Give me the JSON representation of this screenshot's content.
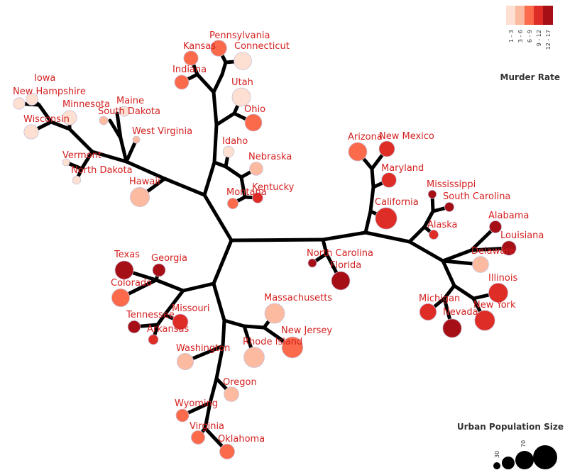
{
  "states": [
    {
      "name": "Iowa",
      "rate": 2.2,
      "urban": 57,
      "color": "#fde0d2"
    },
    {
      "name": "New Hampshire",
      "rate": 2.1,
      "urban": 56,
      "color": "#fde0d2"
    },
    {
      "name": "Wisconsin",
      "rate": 2.6,
      "urban": 66,
      "color": "#fde0d2"
    },
    {
      "name": "Minnesota",
      "rate": 2.7,
      "urban": 66,
      "color": "#fde0d2"
    },
    {
      "name": "Maine",
      "rate": 2.1,
      "urban": 51,
      "color": "#fde0d2"
    },
    {
      "name": "South Dakota",
      "rate": 3.8,
      "urban": 45,
      "color": "#fcbba1"
    },
    {
      "name": "West Virginia",
      "rate": 5.7,
      "urban": 39,
      "color": "#fcbba1"
    },
    {
      "name": "Vermont",
      "rate": 2.2,
      "urban": 32,
      "color": "#fde0d2"
    },
    {
      "name": "North Dakota",
      "rate": 0.8,
      "urban": 44,
      "color": "#fde0d2"
    },
    {
      "name": "Hawaii",
      "rate": 5.3,
      "urban": 83,
      "color": "#fcbba1"
    },
    {
      "name": "Pennsylvania",
      "rate": 6.3,
      "urban": 72,
      "color": "#fb6a4a"
    },
    {
      "name": "Connecticut",
      "rate": 3.3,
      "urban": 77,
      "color": "#fde0d2"
    },
    {
      "name": "Kansas",
      "rate": 6.0,
      "urban": 66,
      "color": "#fb6a4a"
    },
    {
      "name": "Indiana",
      "rate": 7.2,
      "urban": 65,
      "color": "#fb6a4a"
    },
    {
      "name": "Utah",
      "rate": 3.2,
      "urban": 80,
      "color": "#fde0d2"
    },
    {
      "name": "Ohio",
      "rate": 7.3,
      "urban": 75,
      "color": "#fb6a4a"
    },
    {
      "name": "Idaho",
      "rate": 2.6,
      "urban": 54,
      "color": "#fde0d2"
    },
    {
      "name": "Nebraska",
      "rate": 4.3,
      "urban": 62,
      "color": "#fcbba1"
    },
    {
      "name": "Montana",
      "rate": 6.0,
      "urban": 53,
      "color": "#fb6a4a"
    },
    {
      "name": "Kentucky",
      "rate": 9.7,
      "urban": 52,
      "color": "#de2d26"
    },
    {
      "name": "Arizona",
      "rate": 8.1,
      "urban": 80,
      "color": "#fb6a4a"
    },
    {
      "name": "New Mexico",
      "rate": 11.4,
      "urban": 70,
      "color": "#de2d26"
    },
    {
      "name": "Maryland",
      "rate": 11.3,
      "urban": 67,
      "color": "#de2d26"
    },
    {
      "name": "California",
      "rate": 9.0,
      "urban": 91,
      "color": "#de2d26"
    },
    {
      "name": "Mississippi",
      "rate": 16.1,
      "urban": 44,
      "color": "#a50f15"
    },
    {
      "name": "South Carolina",
      "rate": 14.4,
      "urban": 48,
      "color": "#a50f15"
    },
    {
      "name": "Alaska",
      "rate": 10.0,
      "urban": 48,
      "color": "#de2d26"
    },
    {
      "name": "Alabama",
      "rate": 13.2,
      "urban": 58,
      "color": "#a50f15"
    },
    {
      "name": "Louisiana",
      "rate": 15.4,
      "urban": 66,
      "color": "#a50f15"
    },
    {
      "name": "Delaware",
      "rate": 5.9,
      "urban": 72,
      "color": "#fcbba1"
    },
    {
      "name": "Illinois",
      "rate": 10.4,
      "urban": 83,
      "color": "#de2d26"
    },
    {
      "name": "Michigan",
      "rate": 12.1,
      "urban": 74,
      "color": "#de2d26"
    },
    {
      "name": "Nevada",
      "rate": 12.2,
      "urban": 81,
      "color": "#a50f15"
    },
    {
      "name": "New York",
      "rate": 11.1,
      "urban": 86,
      "color": "#de2d26"
    },
    {
      "name": "North Carolina",
      "rate": 13.0,
      "urban": 45,
      "color": "#a50f15"
    },
    {
      "name": "Florida",
      "rate": 15.4,
      "urban": 80,
      "color": "#a50f15"
    },
    {
      "name": "Texas",
      "rate": 12.7,
      "urban": 80,
      "color": "#a50f15"
    },
    {
      "name": "Georgia",
      "rate": 17.4,
      "urban": 60,
      "color": "#a50f15"
    },
    {
      "name": "Colorado",
      "rate": 7.9,
      "urban": 78,
      "color": "#fb6a4a"
    },
    {
      "name": "Tennessee",
      "rate": 13.2,
      "urban": 59,
      "color": "#a50f15"
    },
    {
      "name": "Missouri",
      "rate": 9.0,
      "urban": 70,
      "color": "#de2d26"
    },
    {
      "name": "Arkansas",
      "rate": 8.8,
      "urban": 50,
      "color": "#de2d26"
    },
    {
      "name": "Massachusetts",
      "rate": 4.4,
      "urban": 85,
      "color": "#fcbba1"
    },
    {
      "name": "New Jersey",
      "rate": 7.4,
      "urban": 89,
      "color": "#fb6a4a"
    },
    {
      "name": "Rhode Island",
      "rate": 3.4,
      "urban": 87,
      "color": "#fcbba1"
    },
    {
      "name": "Washington",
      "rate": 4.0,
      "urban": 73,
      "color": "#fcbba1"
    },
    {
      "name": "Oregon",
      "rate": 4.9,
      "urban": 67,
      "color": "#fcbba1"
    },
    {
      "name": "Wyoming",
      "rate": 6.8,
      "urban": 60,
      "color": "#fb6a4a"
    },
    {
      "name": "Virginia",
      "rate": 8.5,
      "urban": 63,
      "color": "#fb6a4a"
    },
    {
      "name": "Oklahoma",
      "rate": 6.6,
      "urban": 68,
      "color": "#fb6a4a"
    }
  ],
  "legend": {
    "color_title": "Murder Rate",
    "color_ranges": [
      "1 - 3",
      "3 - 6",
      "6 - 9",
      "9 - 12",
      "12 - 17"
    ],
    "colors": [
      "#fde0d2",
      "#fcbba1",
      "#fb6a4a",
      "#de2d26",
      "#a50f15"
    ],
    "size_title": "Urban Population Size",
    "size_ticks": [
      "30",
      "70"
    ]
  },
  "branch_color": "#000000",
  "label_color": "#d42020"
}
